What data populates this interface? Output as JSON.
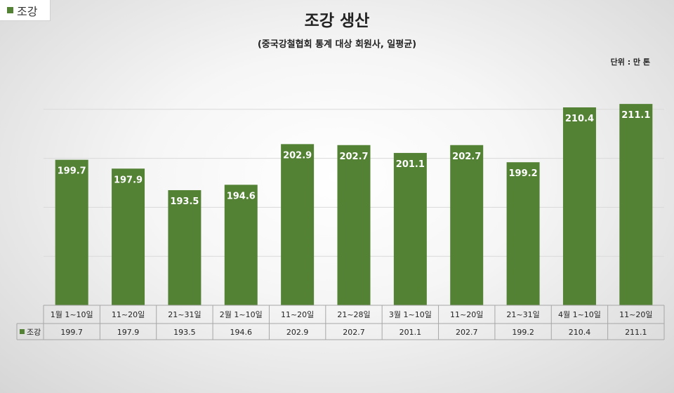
{
  "legend_chip": {
    "label": "조강"
  },
  "unit_label": "단위 : 만 톤",
  "chart_data": {
    "type": "bar",
    "title": "조강 생산",
    "subtitle": "(중국강철협회 통계 대상 회원사, 일평균)",
    "categories": [
      "1월 1~10일",
      "11~20일",
      "21~31일",
      "2월 1~10일",
      "11~20일",
      "21~28일",
      "3월 1~10일",
      "11~20일",
      "21~31일",
      "4월 1~10일",
      "11~20일"
    ],
    "series": [
      {
        "name": "조강",
        "values": [
          199.7,
          197.9,
          193.5,
          194.6,
          202.9,
          202.7,
          201.1,
          202.7,
          199.2,
          210.4,
          211.1
        ]
      }
    ],
    "data_labels": [
      "199.7",
      "197.9",
      "193.5",
      "194.6",
      "202.9",
      "202.7",
      "201.1",
      "202.7",
      "199.2",
      "210.4",
      "211.1"
    ],
    "table_values": [
      "199.7",
      "197.9",
      "193.5",
      "194.6",
      "202.9",
      "202.7",
      "201.1",
      "202.7",
      "199.2",
      "210.4",
      "211.1"
    ],
    "ylim": [
      170,
      220
    ],
    "grid": true,
    "legend_position": "data-table",
    "colors": {
      "bar": "#548235",
      "label": "#ffffff",
      "grid": "#d9d9d9"
    }
  }
}
